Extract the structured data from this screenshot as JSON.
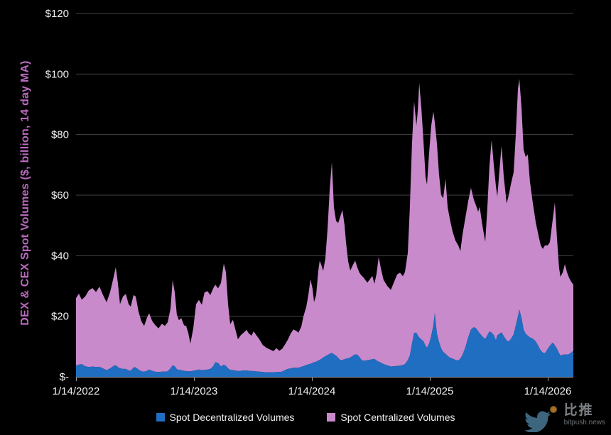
{
  "page": {
    "background": "#000000"
  },
  "chart": {
    "y_axis_title": "DEX & CEX Spot Volumes ($, billion, 14 day MA)",
    "colors": {
      "dex_area": "#1f6ec2",
      "cex_area": "#c98acc",
      "axis_title": "#ba6bbe",
      "gridline": "#454545",
      "axis_line": "#9a9a9a",
      "tick_text": "#f0f0f0",
      "background": "#000000"
    }
  },
  "watermark": {
    "brand": "比推",
    "domain": "bitpush.news"
  },
  "chart_data": {
    "type": "area",
    "stacked": true,
    "title": "",
    "ylabel": "DEX & CEX Spot Volumes ($, billion, 14 day MA)",
    "xlabel": "",
    "ylim": [
      0,
      120
    ],
    "grid": true,
    "legend_position": "bottom",
    "x_unit": "years since 1/14/2022",
    "y_ticks": [
      {
        "label": "$-",
        "value": 0
      },
      {
        "label": "$20",
        "value": 20
      },
      {
        "label": "$40",
        "value": 40
      },
      {
        "label": "$60",
        "value": 60
      },
      {
        "label": "$80",
        "value": 80
      },
      {
        "label": "$100",
        "value": 100
      },
      {
        "label": "$120",
        "value": 120
      }
    ],
    "x_ticks": [
      {
        "label": "1/14/2022",
        "year": 0
      },
      {
        "label": "1/14/2023",
        "year": 1
      },
      {
        "label": "1/14/2024",
        "year": 2
      },
      {
        "label": "1/14/2025",
        "year": 3
      },
      {
        "label": "1/14/2026",
        "year": 4
      }
    ],
    "x_years": [
      0.0,
      0.024,
      0.048,
      0.078,
      0.108,
      0.139,
      0.169,
      0.199,
      0.229,
      0.259,
      0.289,
      0.319,
      0.337,
      0.355,
      0.373,
      0.398,
      0.422,
      0.446,
      0.464,
      0.488,
      0.506,
      0.53,
      0.554,
      0.578,
      0.602,
      0.62,
      0.645,
      0.669,
      0.699,
      0.729,
      0.753,
      0.777,
      0.801,
      0.819,
      0.837,
      0.855,
      0.873,
      0.892,
      0.916,
      0.934,
      0.952,
      0.97,
      0.994,
      1.018,
      1.042,
      1.066,
      1.09,
      1.114,
      1.139,
      1.163,
      1.181,
      1.205,
      1.229,
      1.253,
      1.271,
      1.289,
      1.307,
      1.331,
      1.349,
      1.373,
      1.398,
      1.422,
      1.446,
      1.464,
      1.488,
      1.506,
      1.524,
      1.554,
      1.584,
      1.614,
      1.645,
      1.675,
      1.699,
      1.723,
      1.747,
      1.771,
      1.795,
      1.819,
      1.843,
      1.867,
      1.886,
      1.91,
      1.928,
      1.952,
      1.97,
      1.988,
      2.006,
      2.018,
      2.036,
      2.054,
      2.066,
      2.084,
      2.096,
      2.114,
      2.133,
      2.151,
      2.169,
      2.187,
      2.205,
      2.223,
      2.241,
      2.259,
      2.277,
      2.289,
      2.307,
      2.325,
      2.349,
      2.367,
      2.386,
      2.404,
      2.422,
      2.44,
      2.47,
      2.488,
      2.512,
      2.53,
      2.548,
      2.566,
      2.584,
      2.608,
      2.639,
      2.669,
      2.699,
      2.723,
      2.747,
      2.771,
      2.789,
      2.813,
      2.831,
      2.849,
      2.867,
      2.886,
      2.898,
      2.91,
      2.928,
      2.946,
      2.964,
      2.976,
      2.994,
      3.012,
      3.03,
      3.042,
      3.06,
      3.078,
      3.096,
      3.114,
      3.133,
      3.151,
      3.169,
      3.193,
      3.217,
      3.241,
      3.259,
      3.277,
      3.301,
      3.325,
      3.349,
      3.373,
      3.392,
      3.41,
      3.422,
      3.446,
      3.47,
      3.488,
      3.506,
      3.524,
      3.542,
      3.56,
      3.572,
      3.59,
      3.608,
      3.627,
      3.651,
      3.669,
      3.687,
      3.711,
      3.729,
      3.747,
      3.759,
      3.777,
      3.795,
      3.813,
      3.831,
      3.849,
      3.873,
      3.898,
      3.922,
      3.94,
      3.958,
      3.976,
      4.0,
      4.018,
      4.042,
      4.06,
      4.078,
      4.096,
      4.108,
      4.127,
      4.145,
      4.163,
      4.181,
      4.199,
      4.217
    ],
    "series": [
      {
        "name": "Spot Decentralized Volumes",
        "color": "#1f6ec2",
        "values": [
          3.7,
          4.0,
          4.2,
          3.5,
          3.2,
          3.4,
          3.2,
          3.3,
          2.8,
          2.2,
          2.8,
          3.6,
          3.8,
          3.2,
          2.8,
          2.6,
          2.6,
          2.1,
          2.0,
          3.1,
          3.1,
          2.4,
          1.8,
          1.7,
          2.0,
          2.4,
          2.0,
          1.7,
          1.6,
          1.7,
          1.7,
          1.8,
          2.8,
          3.8,
          3.5,
          2.5,
          2.3,
          2.2,
          2.0,
          1.9,
          1.8,
          1.8,
          2.0,
          2.2,
          2.4,
          2.2,
          2.3,
          2.4,
          2.6,
          3.5,
          4.8,
          4.6,
          3.4,
          4.0,
          3.6,
          2.8,
          2.3,
          2.2,
          2.1,
          1.9,
          2.0,
          2.1,
          2.1,
          2.0,
          1.9,
          1.9,
          1.8,
          1.7,
          1.6,
          1.5,
          1.5,
          1.5,
          1.6,
          1.6,
          1.7,
          2.2,
          2.6,
          2.8,
          3.0,
          3.0,
          3.0,
          3.3,
          3.5,
          3.9,
          4.1,
          4.3,
          4.6,
          4.8,
          5.0,
          5.4,
          5.6,
          6.0,
          6.4,
          6.8,
          7.2,
          7.6,
          7.9,
          7.4,
          7.0,
          6.2,
          5.5,
          5.6,
          5.8,
          6.0,
          6.1,
          6.4,
          7.0,
          7.4,
          7.3,
          6.5,
          5.5,
          5.3,
          5.5,
          5.6,
          5.8,
          5.9,
          5.4,
          5.0,
          4.7,
          4.2,
          3.8,
          3.4,
          3.5,
          3.6,
          3.7,
          3.9,
          4.2,
          5.5,
          7.0,
          11.0,
          14.5,
          14.6,
          13.6,
          13.0,
          12.3,
          11.8,
          10.2,
          9.6,
          11.0,
          13.5,
          17.0,
          21.0,
          14.2,
          11.5,
          9.4,
          8.2,
          7.6,
          6.9,
          6.4,
          6.0,
          5.6,
          5.4,
          6.0,
          7.2,
          9.7,
          13.0,
          15.6,
          16.4,
          16.0,
          15.0,
          14.4,
          13.3,
          12.5,
          13.8,
          15.0,
          14.6,
          13.8,
          12.0,
          13.7,
          14.2,
          14.7,
          13.4,
          12.0,
          11.7,
          12.5,
          14.0,
          17.0,
          20.0,
          22.2,
          19.5,
          15.5,
          14.2,
          13.6,
          13.0,
          12.6,
          11.7,
          10.0,
          8.7,
          8.0,
          7.8,
          9.2,
          10.3,
          11.3,
          10.4,
          9.3,
          7.8,
          7.0,
          7.3,
          7.4,
          7.3,
          7.5,
          8.0,
          8.6
        ]
      },
      {
        "name": "Spot Centralized Volumes",
        "color": "#c98acc",
        "values": [
          22.3,
          23.5,
          21.3,
          23.0,
          25.3,
          25.9,
          24.8,
          26.5,
          24.2,
          22.4,
          25.2,
          29.4,
          32.4,
          27.8,
          21.2,
          23.9,
          24.8,
          21.9,
          21.2,
          23.9,
          23.4,
          19.1,
          16.5,
          15.1,
          17.5,
          18.6,
          16.5,
          15.5,
          14.4,
          15.8,
          15.1,
          16.2,
          19.7,
          28.1,
          24.5,
          18.0,
          16.4,
          17.2,
          15.0,
          14.9,
          12.7,
          9.2,
          14.0,
          21.8,
          23.0,
          21.6,
          25.6,
          25.9,
          24.4,
          25.7,
          25.6,
          24.6,
          27.6,
          33.4,
          30.9,
          21.2,
          15.1,
          16.6,
          13.9,
          10.5,
          11.8,
          12.5,
          13.4,
          12.4,
          11.7,
          13.1,
          12.2,
          10.7,
          8.9,
          8.1,
          7.5,
          7.0,
          7.9,
          7.0,
          7.5,
          8.4,
          9.6,
          11.4,
          12.6,
          12.2,
          11.6,
          13.3,
          16.4,
          19.1,
          22.9,
          27.9,
          24.4,
          19.9,
          22.0,
          29.6,
          32.8,
          30.5,
          28.6,
          32.2,
          41.8,
          54.4,
          63.0,
          48.6,
          44.5,
          44.6,
          47.5,
          49.5,
          44.2,
          38.4,
          32.1,
          28.7,
          30.0,
          31.0,
          28.7,
          27.8,
          27.9,
          27.4,
          25.6,
          26.4,
          27.5,
          24.8,
          28.6,
          34.6,
          31.3,
          27.8,
          26.2,
          25.3,
          28.0,
          30.2,
          30.7,
          29.3,
          30.4,
          35.5,
          49.0,
          66.0,
          76.5,
          68.4,
          74.4,
          84.0,
          76.7,
          66.2,
          55.8,
          53.9,
          63.0,
          69.5,
          70.6,
          63.0,
          62.8,
          55.5,
          50.6,
          50.8,
          57.8,
          49.1,
          45.8,
          42.0,
          39.4,
          38.0,
          35.5,
          39.8,
          42.8,
          45.0,
          46.8,
          42.1,
          40.5,
          39.5,
          41.8,
          36.7,
          32.1,
          42.2,
          55.0,
          63.6,
          56.2,
          51.0,
          45.8,
          53.8,
          61.6,
          52.6,
          45.2,
          48.3,
          51.0,
          53.6,
          63.0,
          75.0,
          76.2,
          69.5,
          59.5,
          58.4,
          59.8,
          51.5,
          44.9,
          39.3,
          36.5,
          34.8,
          34.2,
          35.6,
          34.2,
          34.2,
          40.7,
          47.2,
          36.7,
          28.2,
          26.0,
          27.2,
          29.8,
          27.2,
          25.2,
          23.4,
          21.8
        ]
      }
    ]
  }
}
